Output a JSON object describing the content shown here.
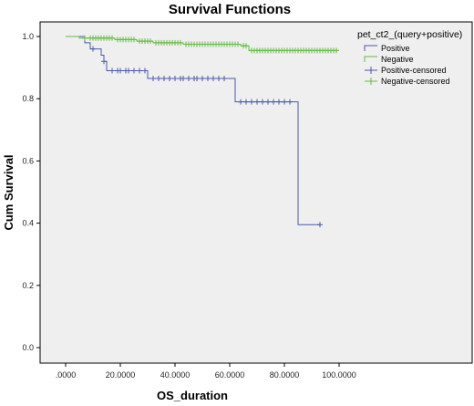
{
  "chart_data": {
    "type": "line",
    "title": "Survival Functions",
    "xlabel": "OS_duration",
    "ylabel": "Cum Survival",
    "xlim": [
      0,
      100
    ],
    "ylim": [
      0,
      1.0
    ],
    "x_ticks": [
      0,
      20,
      40,
      60,
      80,
      100
    ],
    "x_tick_labels": [
      ".0000",
      "20.0000",
      "40.0000",
      "60.0000",
      "80.0000",
      "100.0000"
    ],
    "y_ticks": [
      0,
      0.2,
      0.4,
      0.6,
      0.8,
      1.0
    ],
    "y_tick_labels": [
      "0.0",
      "0.2",
      "0.4",
      "0.6",
      "0.8",
      "1.0"
    ],
    "grid": false,
    "legend": {
      "title": "pet_ct2_(query+positive)",
      "placement": "top-right",
      "entries": [
        "Positive",
        "Negative",
        "Positive-censored",
        "Negative-censored"
      ]
    },
    "series": [
      {
        "name": "Positive",
        "color": "#4a5aaa",
        "steps": [
          [
            0,
            1.0
          ],
          [
            7,
            0.98
          ],
          [
            9,
            0.96
          ],
          [
            13,
            0.94
          ],
          [
            14,
            0.92
          ],
          [
            15,
            0.89
          ],
          [
            30,
            0.865
          ],
          [
            62,
            0.79
          ],
          [
            85,
            0.395
          ],
          [
            93,
            0.395
          ]
        ]
      },
      {
        "name": "Negative",
        "color": "#66bb44",
        "steps": [
          [
            0,
            1.0
          ],
          [
            5,
            0.995
          ],
          [
            18,
            0.99
          ],
          [
            26,
            0.985
          ],
          [
            32,
            0.98
          ],
          [
            43,
            0.975
          ],
          [
            64,
            0.97
          ],
          [
            67,
            0.955
          ],
          [
            100,
            0.955
          ]
        ]
      },
      {
        "name": "Positive-censored",
        "color": "#4a5aaa",
        "points": [
          [
            10,
            0.96
          ],
          [
            14,
            0.92
          ],
          [
            17,
            0.89
          ],
          [
            19,
            0.89
          ],
          [
            20,
            0.89
          ],
          [
            22,
            0.89
          ],
          [
            23,
            0.89
          ],
          [
            25,
            0.89
          ],
          [
            27,
            0.89
          ],
          [
            29,
            0.89
          ],
          [
            32,
            0.865
          ],
          [
            34,
            0.865
          ],
          [
            36,
            0.865
          ],
          [
            38,
            0.865
          ],
          [
            40,
            0.865
          ],
          [
            42,
            0.865
          ],
          [
            43,
            0.865
          ],
          [
            45,
            0.865
          ],
          [
            47,
            0.865
          ],
          [
            48,
            0.865
          ],
          [
            50,
            0.865
          ],
          [
            52,
            0.865
          ],
          [
            54,
            0.865
          ],
          [
            56,
            0.865
          ],
          [
            58,
            0.865
          ],
          [
            64,
            0.79
          ],
          [
            66,
            0.79
          ],
          [
            68,
            0.79
          ],
          [
            70,
            0.79
          ],
          [
            72,
            0.79
          ],
          [
            74,
            0.79
          ],
          [
            76,
            0.79
          ],
          [
            78,
            0.79
          ],
          [
            80,
            0.79
          ],
          [
            82,
            0.79
          ],
          [
            93,
            0.395
          ]
        ]
      },
      {
        "name": "Negative-censored",
        "color": "#66bb44",
        "points": [
          [
            7,
            0.995
          ],
          [
            9,
            0.995
          ],
          [
            10,
            0.995
          ],
          [
            11,
            0.995
          ],
          [
            12,
            0.995
          ],
          [
            13,
            0.995
          ],
          [
            14,
            0.995
          ],
          [
            15,
            0.995
          ],
          [
            16,
            0.995
          ],
          [
            17,
            0.995
          ],
          [
            19,
            0.99
          ],
          [
            20,
            0.99
          ],
          [
            21,
            0.99
          ],
          [
            22,
            0.99
          ],
          [
            23,
            0.99
          ],
          [
            24,
            0.99
          ],
          [
            25,
            0.99
          ],
          [
            27,
            0.985
          ],
          [
            28,
            0.985
          ],
          [
            29,
            0.985
          ],
          [
            30,
            0.985
          ],
          [
            31,
            0.985
          ],
          [
            33,
            0.98
          ],
          [
            34,
            0.98
          ],
          [
            35,
            0.98
          ],
          [
            36,
            0.98
          ],
          [
            37,
            0.98
          ],
          [
            38,
            0.98
          ],
          [
            39,
            0.98
          ],
          [
            40,
            0.98
          ],
          [
            41,
            0.98
          ],
          [
            42,
            0.98
          ],
          [
            44,
            0.975
          ],
          [
            45,
            0.975
          ],
          [
            46,
            0.975
          ],
          [
            47,
            0.975
          ],
          [
            48,
            0.975
          ],
          [
            49,
            0.975
          ],
          [
            50,
            0.975
          ],
          [
            51,
            0.975
          ],
          [
            52,
            0.975
          ],
          [
            53,
            0.975
          ],
          [
            54,
            0.975
          ],
          [
            55,
            0.975
          ],
          [
            56,
            0.975
          ],
          [
            57,
            0.975
          ],
          [
            58,
            0.975
          ],
          [
            59,
            0.975
          ],
          [
            60,
            0.975
          ],
          [
            61,
            0.975
          ],
          [
            62,
            0.975
          ],
          [
            63,
            0.975
          ],
          [
            65,
            0.97
          ],
          [
            66,
            0.97
          ],
          [
            68,
            0.955
          ],
          [
            69,
            0.955
          ],
          [
            70,
            0.955
          ],
          [
            71,
            0.955
          ],
          [
            72,
            0.955
          ],
          [
            73,
            0.955
          ],
          [
            74,
            0.955
          ],
          [
            75,
            0.955
          ],
          [
            76,
            0.955
          ],
          [
            77,
            0.955
          ],
          [
            78,
            0.955
          ],
          [
            79,
            0.955
          ],
          [
            80,
            0.955
          ],
          [
            81,
            0.955
          ],
          [
            82,
            0.955
          ],
          [
            83,
            0.955
          ],
          [
            84,
            0.955
          ],
          [
            85,
            0.955
          ],
          [
            86,
            0.955
          ],
          [
            87,
            0.955
          ],
          [
            88,
            0.955
          ],
          [
            89,
            0.955
          ],
          [
            90,
            0.955
          ],
          [
            91,
            0.955
          ],
          [
            92,
            0.955
          ],
          [
            93,
            0.955
          ],
          [
            94,
            0.955
          ],
          [
            95,
            0.955
          ],
          [
            96,
            0.955
          ],
          [
            97,
            0.955
          ],
          [
            98,
            0.955
          ],
          [
            99,
            0.955
          ]
        ]
      }
    ]
  }
}
